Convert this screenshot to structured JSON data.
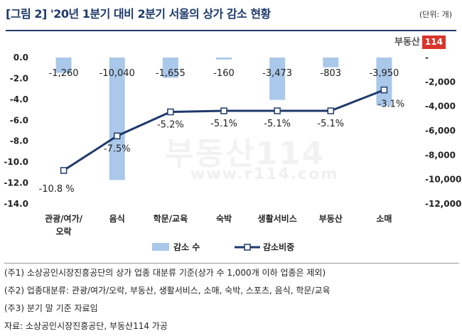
{
  "header": {
    "title": "[그림 2] '20년 1분기 대비 2분기 서울의 상가 감소 현황",
    "unit": "(단위: 개)"
  },
  "logo": {
    "text": "부동산",
    "number": "114"
  },
  "watermark": {
    "big": "부동산114",
    "url": "www.r114.com"
  },
  "chart_data": {
    "type": "bar",
    "categories": [
      "관광/여가/오락",
      "음식",
      "학문/교육",
      "숙박",
      "생활서비스",
      "부동산",
      "소매"
    ],
    "category_lines": [
      [
        "관광/여가/",
        "오락"
      ],
      [
        "음식"
      ],
      [
        "학문/교육"
      ],
      [
        "숙박"
      ],
      [
        "생활서비스"
      ],
      [
        "부동산"
      ],
      [
        "소매"
      ]
    ],
    "series": [
      {
        "name": "감소 수",
        "type": "bar",
        "axis": "right",
        "values": [
          -1260,
          -10040,
          -1655,
          -160,
          -3473,
          -803,
          -3950
        ],
        "labels": [
          "-1,260",
          "-10,040",
          "-1,655",
          "-160",
          "-3,473",
          "-803",
          "-3,950"
        ],
        "color": "#a9c8ea"
      },
      {
        "name": "감소비중",
        "type": "line",
        "axis": "left",
        "values": [
          -10.8,
          -7.5,
          -5.2,
          -5.1,
          -5.1,
          -5.1,
          -3.1
        ],
        "labels": [
          "-10.8 %",
          "-7.5%",
          "-5.2%",
          "-5.1%",
          "-5.1%",
          "-5.1%",
          "-3.1%"
        ],
        "color": "#1f3a6b"
      }
    ],
    "left_axis": {
      "ylim": [
        -14,
        0
      ],
      "ticks": [
        0,
        -2,
        -4,
        -6,
        -8,
        -10,
        -12,
        -14
      ],
      "tick_labels": [
        "0.0",
        "-2.0",
        "-4.0",
        "-6.0",
        "-8.0",
        "-10.0",
        "-12.0",
        "-14.0"
      ]
    },
    "right_axis": {
      "ylim": [
        -12000,
        0
      ],
      "ticks": [
        0,
        -2000,
        -4000,
        -6000,
        -8000,
        -10000,
        -12000
      ],
      "tick_labels": [
        "-",
        "-2,000",
        "-4,000",
        "-6,000",
        "-8,000",
        "-10,000",
        "-12,000"
      ]
    },
    "grid": false,
    "legend": "bottom"
  },
  "notes": [
    "(주1) 소상공인시장진흥공단의 상가 업종 대분류 기준(상가 수 1,000개 이하 업종은 제외)",
    "(주2) 업종대분류: 관광/여가/오락, 부동산, 생활서비스, 소매, 숙박, 스포츠, 음식, 학문/교육",
    "(주3) 분기 말 기준 자료임",
    "자료: 소상공인시장진흥공단, 부동산114 가공"
  ]
}
